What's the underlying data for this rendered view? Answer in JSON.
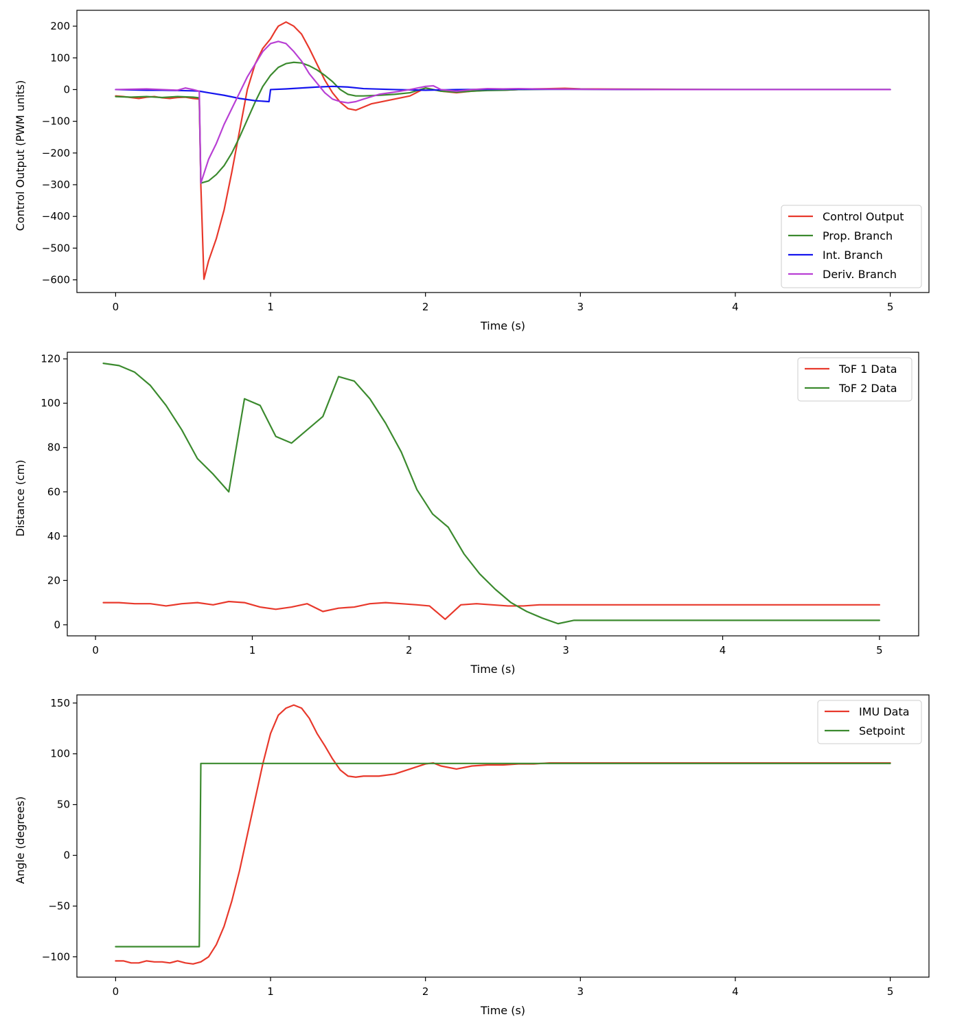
{
  "chart_data": [
    {
      "type": "line",
      "xlabel": "Time (s)",
      "ylabel": "Control Output (PWM units)",
      "xlim": [
        -0.25,
        5.25
      ],
      "ylim": [
        -640,
        250
      ],
      "xticks": [
        0,
        1,
        2,
        3,
        4,
        5
      ],
      "yticks": [
        -600,
        -500,
        -400,
        -300,
        -200,
        -100,
        0,
        100,
        200
      ],
      "legend_position": "lower-right",
      "series": [
        {
          "name": "Control Output",
          "color": "#e8382b",
          "x": [
            0,
            0.05,
            0.1,
            0.15,
            0.2,
            0.25,
            0.3,
            0.35,
            0.4,
            0.45,
            0.5,
            0.54,
            0.55,
            0.57,
            0.6,
            0.65,
            0.7,
            0.75,
            0.8,
            0.85,
            0.9,
            0.95,
            1.0,
            1.03,
            1.05,
            1.1,
            1.15,
            1.2,
            1.25,
            1.3,
            1.35,
            1.4,
            1.45,
            1.5,
            1.55,
            1.6,
            1.65,
            1.7,
            1.8,
            1.9,
            2.0,
            2.1,
            2.2,
            2.3,
            2.4,
            2.5,
            2.6,
            2.7,
            2.8,
            2.9,
            3.0,
            3.5,
            4.0,
            4.5,
            5.0
          ],
          "y": [
            -20,
            -22,
            -25,
            -28,
            -24,
            -22,
            -26,
            -28,
            -25,
            -24,
            -28,
            -30,
            -300,
            -598,
            -540,
            -470,
            -380,
            -260,
            -130,
            0,
            80,
            130,
            160,
            185,
            200,
            213,
            200,
            175,
            130,
            80,
            30,
            -10,
            -40,
            -60,
            -65,
            -55,
            -45,
            -40,
            -30,
            -20,
            5,
            -5,
            -10,
            -5,
            -2,
            -2,
            0,
            2,
            3,
            4,
            2,
            1,
            0,
            0,
            0
          ]
        },
        {
          "name": "Prop. Branch",
          "color": "#3b8a2e",
          "x": [
            0,
            0.1,
            0.2,
            0.3,
            0.4,
            0.5,
            0.54,
            0.55,
            0.6,
            0.65,
            0.7,
            0.75,
            0.8,
            0.85,
            0.9,
            0.95,
            1.0,
            1.05,
            1.1,
            1.15,
            1.2,
            1.25,
            1.3,
            1.35,
            1.4,
            1.45,
            1.5,
            1.55,
            1.6,
            1.7,
            1.8,
            1.9,
            2.0,
            2.1,
            2.2,
            2.3,
            2.4,
            2.5,
            2.6,
            2.8,
            3.0,
            3.5,
            4.0,
            4.5,
            5.0
          ],
          "y": [
            -22,
            -24,
            -22,
            -25,
            -22,
            -24,
            -26,
            -295,
            -288,
            -268,
            -240,
            -200,
            -150,
            -95,
            -40,
            10,
            45,
            70,
            82,
            86,
            84,
            75,
            62,
            45,
            25,
            0,
            -15,
            -20,
            -20,
            -18,
            -15,
            -10,
            5,
            -5,
            -8,
            -5,
            -3,
            -2,
            0,
            1,
            1,
            0,
            0,
            0,
            0
          ]
        },
        {
          "name": "Int. Branch",
          "color": "#1414ee",
          "x": [
            0,
            0.1,
            0.2,
            0.3,
            0.4,
            0.5,
            0.54,
            0.6,
            0.7,
            0.8,
            0.9,
            0.99,
            1.0,
            1.1,
            1.2,
            1.3,
            1.4,
            1.5,
            1.6,
            1.8,
            2.0,
            2.2,
            2.5,
            3.0,
            3.5,
            4.0,
            4.5,
            5.0
          ],
          "y": [
            0,
            -1,
            -2,
            -2,
            -3,
            -4,
            -5,
            -10,
            -18,
            -28,
            -35,
            -38,
            0,
            2,
            5,
            8,
            10,
            8,
            3,
            0,
            -2,
            0,
            1,
            1,
            0,
            0,
            0,
            0
          ]
        },
        {
          "name": "Deriv. Branch",
          "color": "#b83fd4",
          "x": [
            0,
            0.1,
            0.2,
            0.3,
            0.4,
            0.45,
            0.5,
            0.54,
            0.55,
            0.6,
            0.65,
            0.7,
            0.75,
            0.8,
            0.85,
            0.9,
            0.95,
            1.0,
            1.05,
            1.1,
            1.15,
            1.2,
            1.25,
            1.3,
            1.35,
            1.4,
            1.45,
            1.5,
            1.55,
            1.6,
            1.7,
            1.8,
            1.9,
            2.0,
            2.05,
            2.1,
            2.2,
            2.3,
            2.4,
            2.5,
            2.6,
            2.7,
            3.0,
            3.5,
            4.0,
            4.5,
            5.0
          ],
          "y": [
            0,
            1,
            2,
            0,
            -2,
            5,
            0,
            -5,
            -295,
            -220,
            -170,
            -110,
            -60,
            -10,
            40,
            80,
            120,
            145,
            152,
            145,
            120,
            90,
            50,
            20,
            -10,
            -30,
            -38,
            -42,
            -38,
            -30,
            -15,
            -8,
            0,
            10,
            12,
            0,
            -5,
            0,
            3,
            2,
            3,
            2,
            1,
            0,
            0,
            0,
            0
          ]
        }
      ]
    },
    {
      "type": "line",
      "xlabel": "Time (s)",
      "ylabel": "Distance (cm)",
      "xlim": [
        -0.18,
        5.25
      ],
      "ylim": [
        -5,
        123
      ],
      "xticks": [
        0,
        1,
        2,
        3,
        4,
        5
      ],
      "yticks": [
        0,
        20,
        40,
        60,
        80,
        100,
        120
      ],
      "legend_position": "upper-right",
      "series": [
        {
          "name": "ToF 1 Data",
          "color": "#e8382b",
          "x": [
            0.05,
            0.15,
            0.25,
            0.35,
            0.45,
            0.55,
            0.65,
            0.75,
            0.85,
            0.95,
            1.05,
            1.15,
            1.25,
            1.35,
            1.45,
            1.55,
            1.65,
            1.75,
            1.85,
            1.95,
            2.05,
            2.13,
            2.23,
            2.33,
            2.43,
            2.53,
            2.63,
            2.73,
            2.83,
            2.93,
            3.03,
            3.13,
            3.23,
            3.5,
            4.0,
            4.5,
            5.0
          ],
          "y": [
            10,
            10,
            9.5,
            9.5,
            8.5,
            9.5,
            10,
            9,
            10.5,
            10,
            8,
            7,
            8,
            9.5,
            6,
            7.5,
            8,
            9.5,
            10,
            9.5,
            9,
            8.5,
            2.5,
            9,
            9.5,
            9,
            8.5,
            8.5,
            9,
            9,
            9,
            9,
            9,
            9,
            9,
            9,
            9
          ]
        },
        {
          "name": "ToF 2 Data",
          "color": "#3b8a2e",
          "x": [
            0.05,
            0.15,
            0.25,
            0.35,
            0.45,
            0.55,
            0.65,
            0.75,
            0.85,
            0.95,
            1.05,
            1.15,
            1.25,
            1.35,
            1.45,
            1.55,
            1.65,
            1.75,
            1.85,
            1.95,
            2.05,
            2.15,
            2.25,
            2.35,
            2.45,
            2.55,
            2.65,
            2.75,
            2.85,
            2.95,
            3.05,
            3.5,
            4.0,
            4.5,
            5.0
          ],
          "y": [
            118,
            117,
            114,
            108,
            99,
            88,
            75,
            68,
            60,
            102,
            99,
            85,
            82,
            88,
            94,
            112,
            110,
            102,
            91,
            78,
            61,
            50,
            44,
            32,
            23,
            16,
            10,
            6,
            3,
            0.5,
            2,
            2,
            2,
            2,
            2
          ]
        }
      ]
    },
    {
      "type": "line",
      "xlabel": "Time (s)",
      "ylabel": "Angle (degrees)",
      "xlim": [
        -0.25,
        5.25
      ],
      "ylim": [
        -120,
        158
      ],
      "xticks": [
        0,
        1,
        2,
        3,
        4,
        5
      ],
      "yticks": [
        -100,
        -50,
        0,
        50,
        100,
        150
      ],
      "legend_position": "upper-right",
      "series": [
        {
          "name": "IMU Data",
          "color": "#e8382b",
          "x": [
            0,
            0.05,
            0.1,
            0.15,
            0.2,
            0.25,
            0.3,
            0.35,
            0.4,
            0.45,
            0.5,
            0.55,
            0.6,
            0.65,
            0.7,
            0.75,
            0.8,
            0.85,
            0.9,
            0.95,
            1.0,
            1.05,
            1.1,
            1.15,
            1.2,
            1.25,
            1.3,
            1.35,
            1.4,
            1.45,
            1.5,
            1.55,
            1.6,
            1.7,
            1.8,
            1.9,
            2.0,
            2.05,
            2.1,
            2.2,
            2.3,
            2.4,
            2.5,
            2.6,
            2.7,
            2.8,
            2.9,
            3.0,
            3.5,
            4.0,
            4.5,
            5.0
          ],
          "y": [
            -104,
            -104,
            -106,
            -106,
            -104,
            -105,
            -105,
            -106,
            -104,
            -106,
            -107,
            -105,
            -100,
            -88,
            -70,
            -45,
            -15,
            20,
            55,
            90,
            120,
            138,
            145,
            148,
            145,
            135,
            120,
            108,
            95,
            84,
            78,
            77,
            78,
            78,
            80,
            85,
            90,
            91,
            88,
            85,
            88,
            89,
            89,
            90,
            90,
            91,
            91,
            91,
            91,
            91,
            91,
            91
          ]
        },
        {
          "name": "Setpoint",
          "color": "#3b8a2e",
          "x": [
            0,
            0.54,
            0.55,
            5.0
          ],
          "y": [
            -90,
            -90,
            90.5,
            90.5
          ]
        }
      ]
    }
  ]
}
